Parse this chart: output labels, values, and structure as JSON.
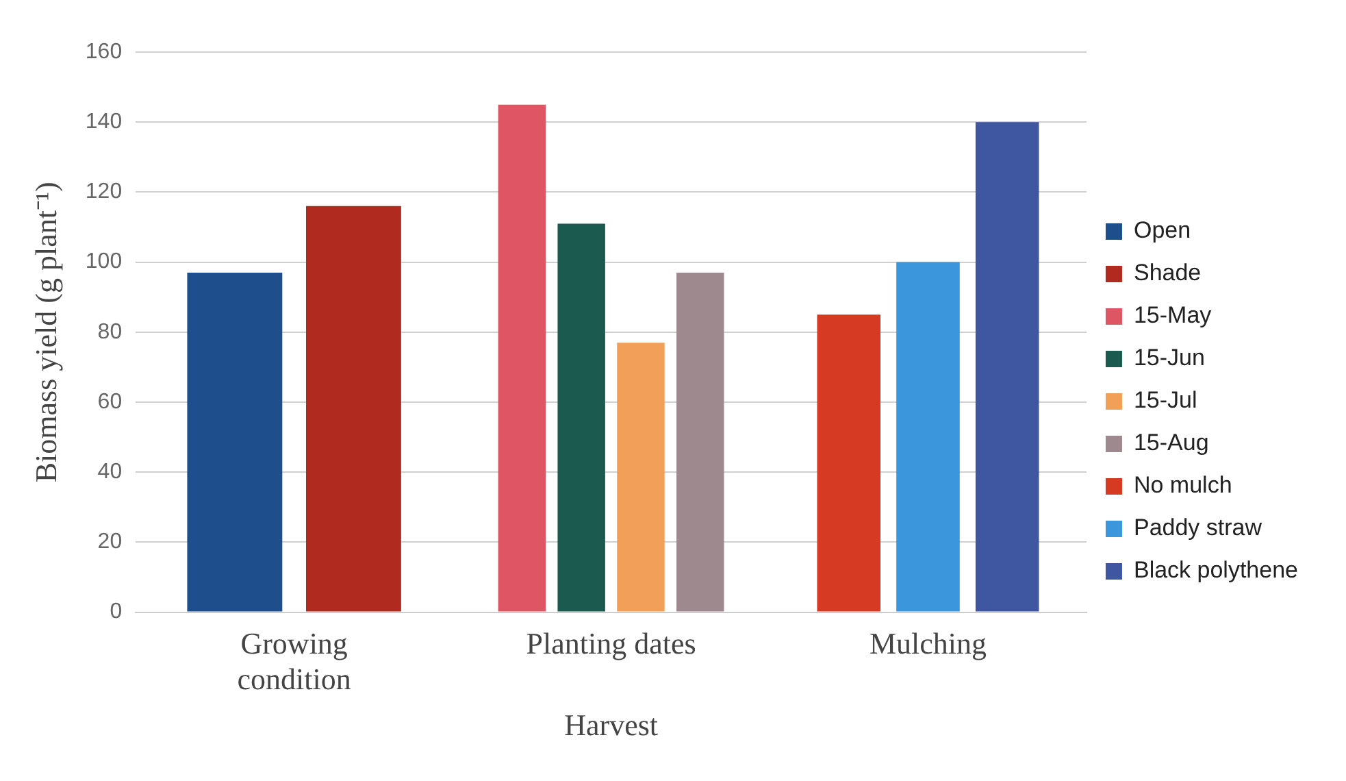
{
  "chart_data": {
    "type": "bar",
    "xlabel": "Harvest",
    "ylabel": "Biomass yield (g plant⁻¹)",
    "categories": [
      "Growing condition",
      "Planting dates",
      "Mulching"
    ],
    "series": [
      {
        "name": "Open",
        "color": "#1f4e8c",
        "values": [
          97,
          null,
          null
        ]
      },
      {
        "name": "Shade",
        "color": "#b02a20",
        "values": [
          116,
          null,
          null
        ]
      },
      {
        "name": "15-May",
        "color": "#de5563",
        "values": [
          null,
          145,
          null
        ]
      },
      {
        "name": "15-Jun",
        "color": "#1b5a4e",
        "values": [
          null,
          111,
          null
        ]
      },
      {
        "name": "15-Jul",
        "color": "#f2a058",
        "values": [
          null,
          77,
          null
        ]
      },
      {
        "name": "15-Aug",
        "color": "#9e8a8e",
        "values": [
          null,
          97,
          null
        ]
      },
      {
        "name": "No mulch",
        "color": "#d63a22",
        "values": [
          null,
          null,
          85
        ]
      },
      {
        "name": "Paddy straw",
        "color": "#3b96dc",
        "values": [
          null,
          null,
          100
        ]
      },
      {
        "name": "Black polythene",
        "color": "#3f56a0",
        "values": [
          null,
          null,
          140
        ]
      }
    ],
    "ylim": [
      0,
      160
    ],
    "yticks": [
      0,
      20,
      40,
      60,
      80,
      100,
      120,
      140,
      160
    ],
    "grid": "y",
    "legend": "right"
  }
}
